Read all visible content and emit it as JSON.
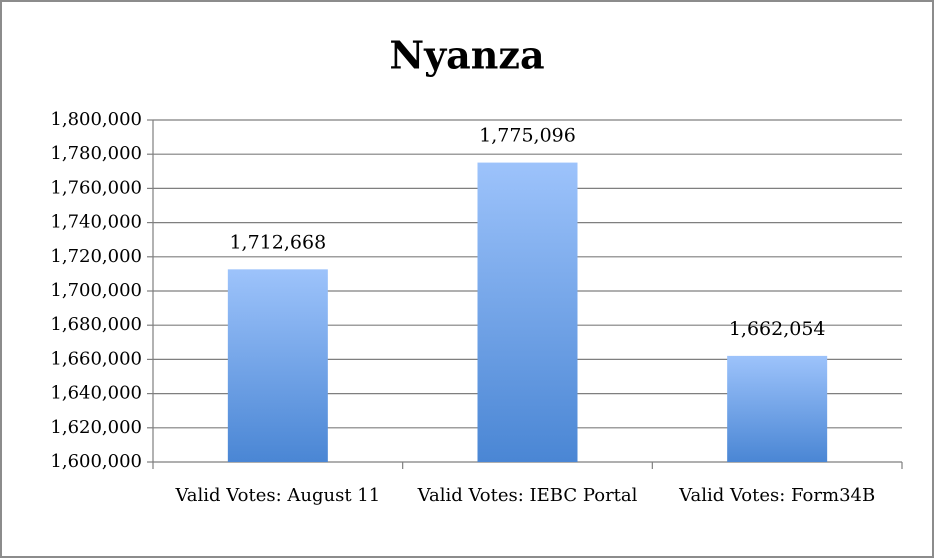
{
  "chart_data": {
    "type": "bar",
    "title": "Nyanza",
    "categories": [
      "Valid Votes: August 11",
      "Valid Votes: IEBC Portal",
      "Valid Votes: Form34B"
    ],
    "values": [
      1712668,
      1775096,
      1662054
    ],
    "value_labels": [
      "1,712,668",
      "1,775,096",
      "1,662,054"
    ],
    "ylim": [
      1600000,
      1800000
    ],
    "yticks": [
      {
        "value": 1600000,
        "label": "1,600,000"
      },
      {
        "value": 1620000,
        "label": "1,620,000"
      },
      {
        "value": 1640000,
        "label": "1,640,000"
      },
      {
        "value": 1660000,
        "label": "1,660,000"
      },
      {
        "value": 1680000,
        "label": "1,680,000"
      },
      {
        "value": 1700000,
        "label": "1,700,000"
      },
      {
        "value": 1720000,
        "label": "1,720,000"
      },
      {
        "value": 1740000,
        "label": "1,740,000"
      },
      {
        "value": 1760000,
        "label": "1,760,000"
      },
      {
        "value": 1780000,
        "label": "1,780,000"
      },
      {
        "value": 1800000,
        "label": "1,800,000"
      }
    ],
    "grid": true,
    "color": "#4a86d4"
  }
}
